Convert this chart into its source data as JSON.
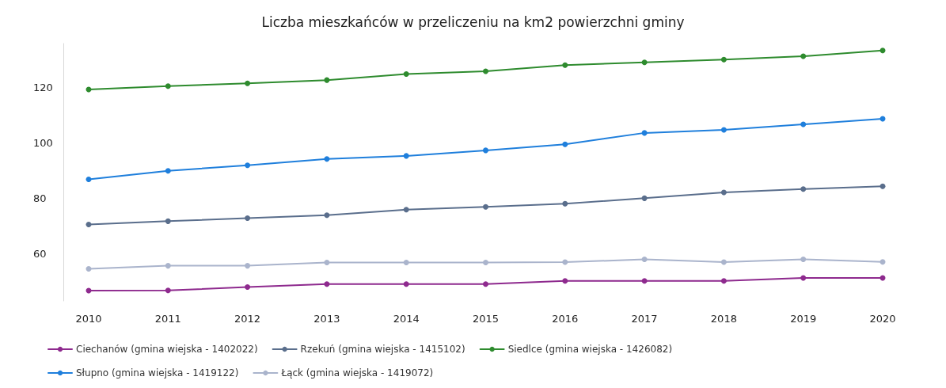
{
  "chart_data": {
    "type": "line",
    "title": "Liczba mieszkańców w przeliczeniu na km2 powierzchni gminy",
    "categories": [
      "2010",
      "2011",
      "2012",
      "2013",
      "2014",
      "2015",
      "2016",
      "2017",
      "2018",
      "2019",
      "2020"
    ],
    "series": [
      {
        "name": "Ciechanów (gmina wiejska - 1402022)",
        "color": "#8e2a8e",
        "values": [
          46.7,
          46.8,
          48.0,
          49.1,
          49.1,
          49.1,
          50.2,
          50.2,
          50.2,
          51.3,
          51.3
        ]
      },
      {
        "name": "Rzekuń (gmina wiejska - 1415102)",
        "color": "#5a6e8c",
        "values": [
          70.6,
          71.8,
          72.9,
          74.0,
          76.0,
          77.0,
          78.1,
          80.1,
          82.2,
          83.4,
          84.4
        ]
      },
      {
        "name": "Siedlce (gmina wiejska - 1426082)",
        "color": "#2e8b2e",
        "values": [
          119.4,
          120.6,
          121.6,
          122.8,
          125.0,
          126.0,
          128.2,
          129.2,
          130.2,
          131.4,
          133.5
        ]
      },
      {
        "name": "Słupno (gmina wiejska - 1419122)",
        "color": "#1f7fdc",
        "values": [
          86.9,
          90.0,
          92.0,
          94.3,
          95.4,
          97.4,
          99.6,
          103.7,
          104.8,
          106.8,
          108.8
        ]
      },
      {
        "name": "Łąck (gmina wiejska - 1419072)",
        "color": "#aab4cc",
        "values": [
          54.6,
          55.7,
          55.7,
          56.9,
          56.9,
          56.9,
          57.0,
          58.0,
          57.0,
          58.0,
          57.1
        ]
      }
    ],
    "ylim": [
      43,
      136
    ],
    "yticks": [
      60,
      80,
      100,
      120
    ],
    "grid": false,
    "legend": "bottom",
    "marker": "circle",
    "line_style": "solid"
  }
}
